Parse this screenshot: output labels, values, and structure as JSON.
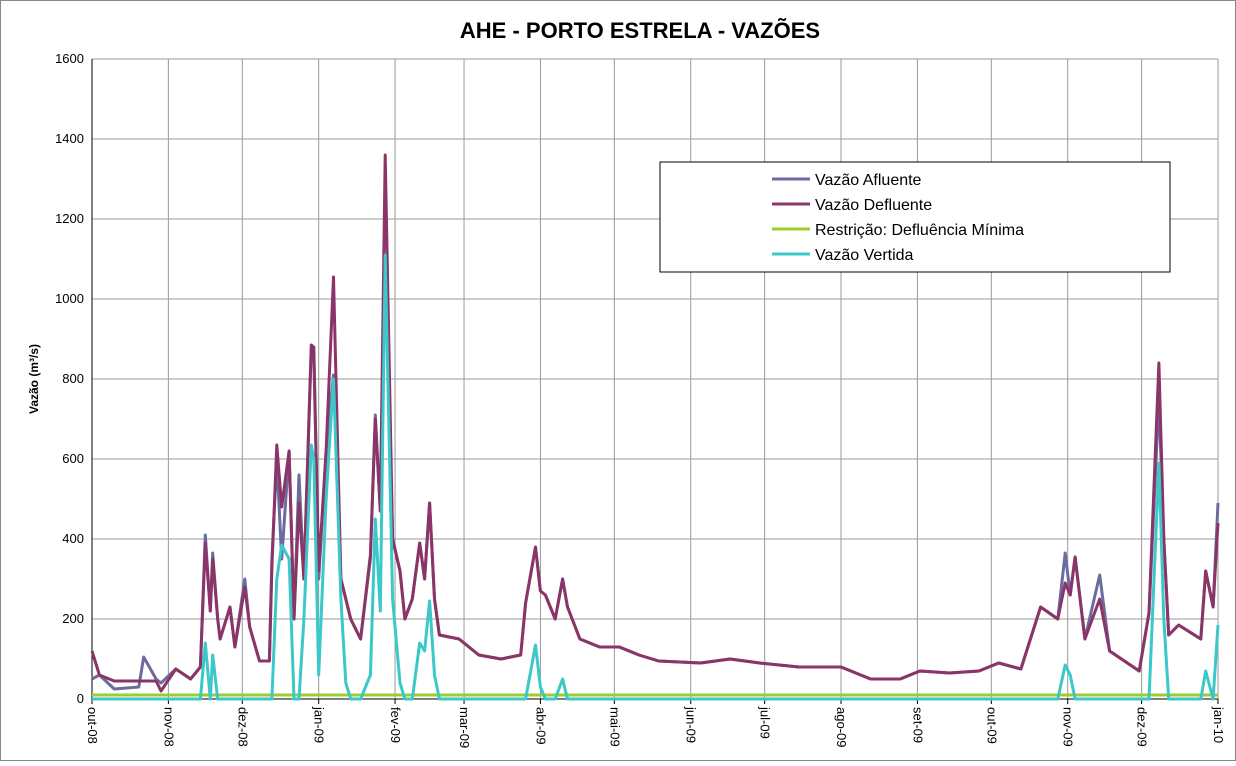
{
  "chart_data": {
    "type": "line",
    "title": "AHE - PORTO ESTRELA - VAZÕES",
    "y_label": "Vazão (m³/s)",
    "xlim": [
      0,
      457
    ],
    "xticks": [
      {
        "value": 0,
        "label": "out-08"
      },
      {
        "value": 31,
        "label": "nov-08"
      },
      {
        "value": 61,
        "label": "dez-08"
      },
      {
        "value": 92,
        "label": "jan-09"
      },
      {
        "value": 123,
        "label": "fev-09"
      },
      {
        "value": 151,
        "label": "mar-09"
      },
      {
        "value": 182,
        "label": "abr-09"
      },
      {
        "value": 212,
        "label": "mai-09"
      },
      {
        "value": 243,
        "label": "jun-09"
      },
      {
        "value": 273,
        "label": "jul-09"
      },
      {
        "value": 304,
        "label": "ago-09"
      },
      {
        "value": 335,
        "label": "set-09"
      },
      {
        "value": 365,
        "label": "out-09"
      },
      {
        "value": 396,
        "label": "nov-09"
      },
      {
        "value": 426,
        "label": "dez-09"
      },
      {
        "value": 457,
        "label": "jan-10"
      }
    ],
    "ylim": [
      0,
      1600
    ],
    "yticks": [
      0,
      200,
      400,
      600,
      800,
      1000,
      1200,
      1400,
      1600
    ],
    "grid": true,
    "legend": "upper right",
    "x": [
      0,
      3,
      9,
      19,
      21,
      26,
      28,
      34,
      40,
      44,
      46,
      48,
      49,
      51,
      52,
      56,
      58,
      62,
      64,
      68,
      72,
      73,
      75,
      77,
      80,
      82,
      84,
      86,
      89,
      90,
      92,
      95,
      98,
      101,
      103,
      105,
      109,
      113,
      115,
      117,
      119,
      122,
      125,
      127,
      130,
      133,
      135,
      137,
      139,
      141,
      149,
      157,
      166,
      174,
      176,
      180,
      182,
      184,
      188,
      191,
      193,
      198,
      206,
      214,
      222,
      230,
      247,
      259,
      271,
      287,
      304,
      316,
      328,
      336,
      348,
      360,
      368,
      377,
      385,
      392,
      395,
      397,
      399,
      403,
      409,
      413,
      425,
      429,
      433,
      435,
      437,
      441,
      450,
      452,
      455,
      457
    ],
    "series": [
      {
        "name": "Vazão Afluente",
        "color": "#6b6b9f",
        "values": [
          50,
          60,
          25,
          30,
          105,
          50,
          40,
          75,
          50,
          80,
          410,
          220,
          365,
          200,
          150,
          230,
          130,
          300,
          180,
          95,
          95,
          350,
          600,
          350,
          620,
          200,
          560,
          300,
          880,
          860,
          300,
          620,
          810,
          300,
          250,
          200,
          150,
          350,
          710,
          470,
          1110,
          400,
          320,
          200,
          250,
          390,
          300,
          490,
          250,
          160,
          150,
          110,
          100,
          110,
          240,
          380,
          270,
          260,
          200,
          300,
          230,
          150,
          130,
          130,
          110,
          95,
          90,
          100,
          90,
          80,
          80,
          50,
          50,
          70,
          65,
          70,
          90,
          75,
          230,
          200,
          365,
          260,
          355,
          150,
          310,
          120,
          70,
          215,
          750,
          400,
          160,
          185,
          150,
          320,
          230,
          490
        ]
      },
      {
        "name": "Vazão Defluente",
        "color": "#8b3468",
        "values": [
          120,
          60,
          45,
          45,
          45,
          45,
          20,
          75,
          50,
          80,
          390,
          220,
          350,
          200,
          150,
          230,
          130,
          280,
          180,
          95,
          95,
          330,
          635,
          480,
          620,
          200,
          490,
          300,
          885,
          880,
          320,
          620,
          1055,
          300,
          250,
          200,
          150,
          360,
          700,
          470,
          1360,
          400,
          320,
          200,
          250,
          390,
          300,
          490,
          250,
          160,
          150,
          110,
          100,
          110,
          240,
          380,
          270,
          260,
          200,
          300,
          230,
          150,
          130,
          130,
          110,
          95,
          90,
          100,
          90,
          80,
          80,
          50,
          50,
          70,
          65,
          70,
          90,
          75,
          230,
          200,
          290,
          260,
          355,
          150,
          250,
          120,
          70,
          215,
          840,
          400,
          160,
          185,
          150,
          320,
          230,
          440
        ]
      },
      {
        "name": "Restrição: Defluência Mínima",
        "color": "#9ccc2e",
        "x": [
          0,
          457
        ],
        "values": [
          10,
          10
        ]
      },
      {
        "name": "Vazão Vertida",
        "color": "#3cc8c8",
        "values": [
          0,
          0,
          0,
          0,
          0,
          0,
          0,
          0,
          0,
          0,
          140,
          0,
          110,
          0,
          0,
          0,
          0,
          0,
          0,
          0,
          0,
          0,
          300,
          385,
          350,
          0,
          0,
          200,
          635,
          600,
          60,
          500,
          800,
          250,
          40,
          0,
          0,
          60,
          450,
          220,
          1110,
          250,
          40,
          0,
          0,
          140,
          120,
          245,
          60,
          0,
          0,
          0,
          0,
          0,
          0,
          135,
          30,
          0,
          0,
          50,
          0,
          0,
          0,
          0,
          0,
          0,
          0,
          0,
          0,
          0,
          0,
          0,
          0,
          0,
          0,
          0,
          0,
          0,
          0,
          0,
          85,
          60,
          0,
          0,
          0,
          0,
          0,
          0,
          590,
          200,
          0,
          0,
          0,
          70,
          0,
          185
        ]
      }
    ]
  }
}
